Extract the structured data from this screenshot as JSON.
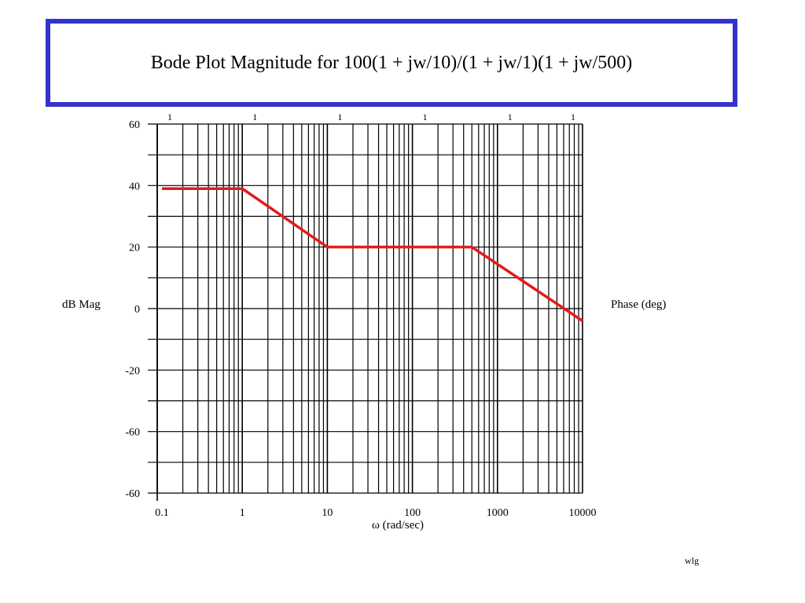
{
  "chart_data": {
    "type": "line",
    "title": "Bode Plot Magnitude for 100(1 + jw/10)/(1 + jw/1)(1 + jw/500)",
    "xlabel": "ω (rad/sec)",
    "ylabel_left": "dB Mag",
    "ylabel_right": "Phase (deg)",
    "x_scale": "log",
    "xlim": [
      0.1,
      10000
    ],
    "x_tick_labels": [
      "0.1",
      "1",
      "10",
      "100",
      "1000",
      "10000"
    ],
    "top_tick_labels": [
      "1",
      "1",
      "1",
      "1",
      "1",
      "1"
    ],
    "y_tick_labels": [
      "60",
      "40",
      "20",
      "0",
      "-20",
      "-60",
      "-60"
    ],
    "grid": true,
    "series": [
      {
        "color": "#e31b1b",
        "x": [
          0.1,
          1,
          10,
          500,
          10000
        ],
        "y": [
          39,
          39,
          20,
          20,
          -4
        ]
      }
    ]
  },
  "footer": {
    "note": "wlg"
  }
}
